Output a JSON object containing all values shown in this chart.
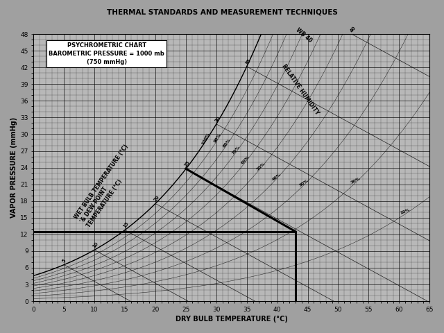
{
  "title": "THERMAL STANDARDS AND MEASUREMENT TECHNIQUES",
  "box_text": "PSYCHROMETRIC CHART\nBAROMETRIC PRESSURE = 1000 mb\n(750 mmHg)",
  "xlabel": "DRY BULB TEMPERATURE (°C)",
  "ylabel": "VAPOR PRESSURE (mmHg)",
  "xlim": [
    0,
    65
  ],
  "ylim": [
    0,
    48
  ],
  "xticks": [
    0,
    5,
    10,
    15,
    20,
    25,
    30,
    35,
    40,
    45,
    50,
    55,
    60,
    65
  ],
  "yticks": [
    0,
    3,
    6,
    9,
    12,
    15,
    18,
    21,
    24,
    27,
    30,
    33,
    36,
    39,
    42,
    45,
    48
  ],
  "bg_color": "#a0a0a0",
  "chart_bg": "#b8b8b8",
  "rh_values": [
    10,
    20,
    30,
    40,
    50,
    60,
    70,
    80,
    90,
    100
  ],
  "wb_temps": [
    5,
    10,
    15,
    20,
    25,
    30,
    35,
    40
  ],
  "example_horiz_y": 12.5,
  "example_horiz_x0": 0,
  "example_horiz_x1": 43,
  "example_diag_x0": 25,
  "example_diag_y0": 23.8,
  "example_vert_x": 43
}
